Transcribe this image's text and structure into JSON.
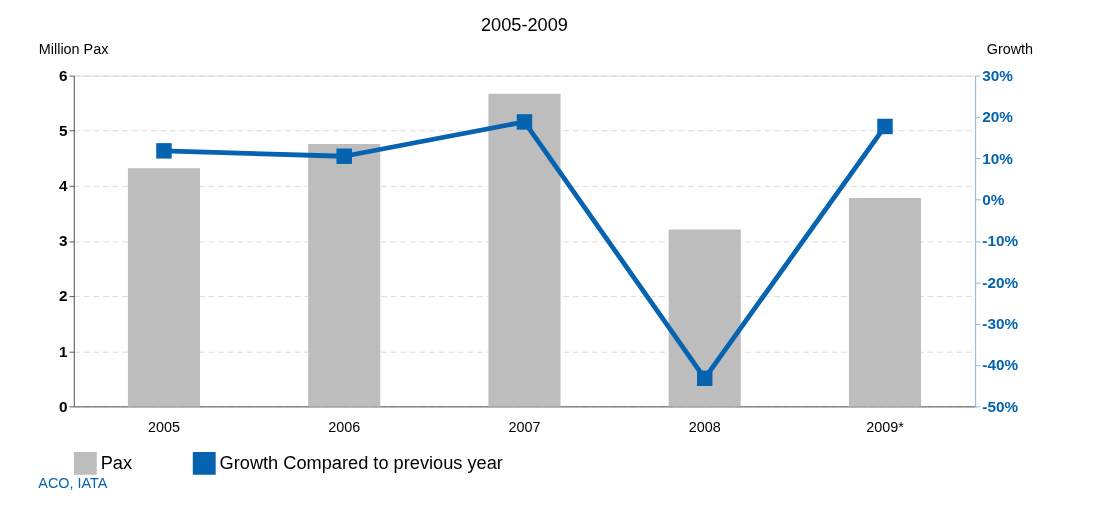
{
  "chart_data": {
    "type": "bar",
    "title": "2005-2009",
    "ylabel": "Million Pax",
    "y2label": "Growth",
    "categories": [
      "2005",
      "2006",
      "2007",
      "2008",
      "2009*"
    ],
    "series": [
      {
        "name": "Pax",
        "color": "#bdbdbd",
        "values": [
          4.32,
          4.76,
          5.67,
          3.21,
          3.78
        ]
      },
      {
        "name": "Growth Compared to previous year",
        "type": "line",
        "axis": "y2",
        "color": "#0563b0",
        "values": [
          11.8,
          10.5,
          18.8,
          -43.2,
          17.7
        ]
      }
    ],
    "ylim": [
      0,
      6
    ],
    "yticks": [
      0,
      1,
      2,
      3,
      4,
      5,
      6
    ],
    "y2lim": [
      -50,
      30
    ],
    "y2ticks": [
      {
        "value": -50,
        "label": "-50%"
      },
      {
        "value": -40,
        "label": "-40%"
      },
      {
        "value": -30,
        "label": "-30%"
      },
      {
        "value": -20,
        "label": "-20%"
      },
      {
        "value": -10,
        "label": "-10%"
      },
      {
        "value": 0,
        "label": "0%"
      },
      {
        "value": 10,
        "label": "10%"
      },
      {
        "value": 20,
        "label": "20%"
      },
      {
        "value": 30,
        "label": "30%"
      }
    ],
    "grid": "y",
    "legend": "bottom",
    "marker": "square",
    "line_style": "solid",
    "annotations": [
      "ACO, IATA"
    ]
  }
}
